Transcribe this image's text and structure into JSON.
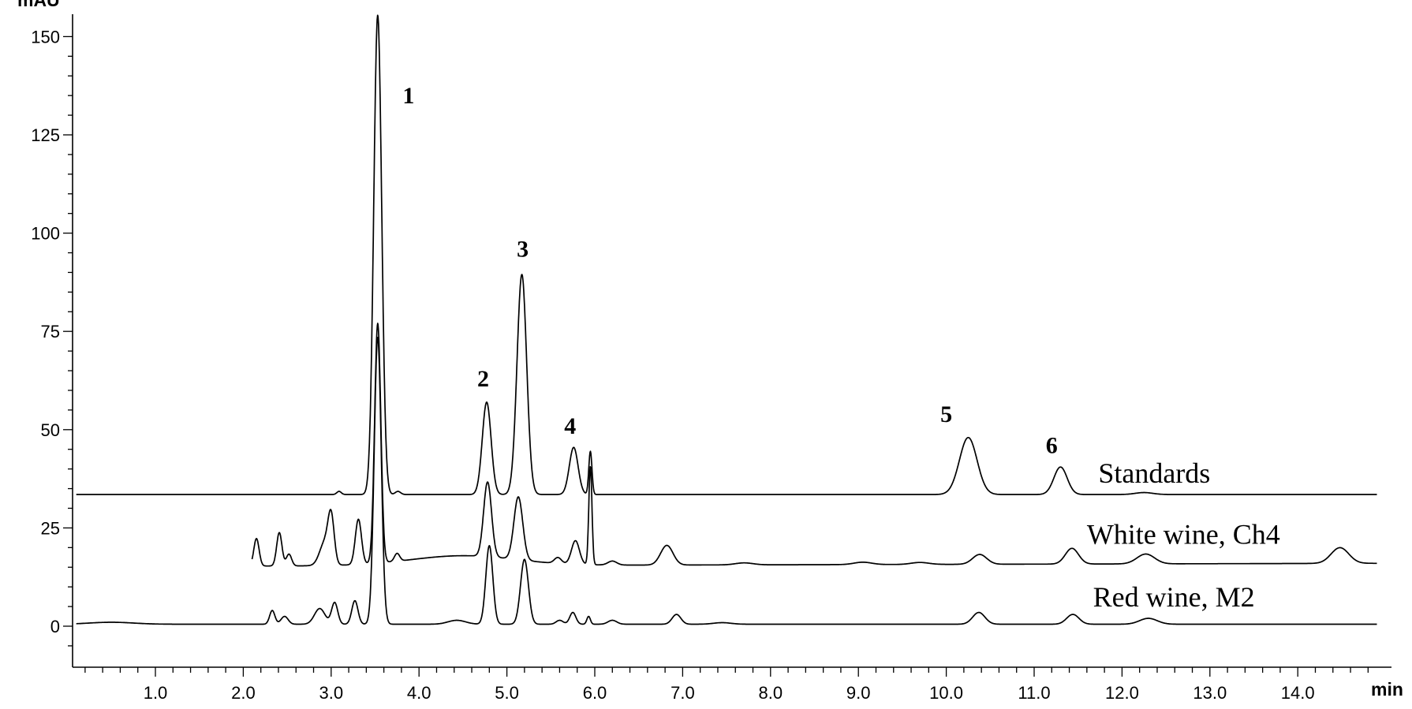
{
  "chart_data": {
    "type": "line",
    "title": "",
    "xlabel": "min",
    "ylabel": "mAU",
    "xlim": [
      0.1,
      14.9
    ],
    "ylim": [
      -10,
      156
    ],
    "x_ticks": [
      "1.0",
      "2.0",
      "3.0",
      "4.0",
      "5.0",
      "6.0",
      "7.0",
      "8.0",
      "9.0",
      "10.0",
      "11.0",
      "12.0",
      "13.0",
      "14.0"
    ],
    "y_ticks": [
      "0",
      "25",
      "50",
      "75",
      "100",
      "125",
      "150"
    ],
    "grid": false,
    "series": [
      {
        "name": "Standards",
        "baseline": 33.5,
        "peaks": [
          {
            "x": 3.09,
            "h": 0.8,
            "w": 0.025
          },
          {
            "x": 3.53,
            "h": 122.0,
            "w": 0.045
          },
          {
            "x": 3.76,
            "h": 0.8,
            "w": 0.03
          },
          {
            "x": 4.77,
            "h": 23.5,
            "w": 0.05
          },
          {
            "x": 5.17,
            "h": 56.0,
            "w": 0.055
          },
          {
            "x": 5.76,
            "h": 12.0,
            "w": 0.05
          },
          {
            "x": 5.95,
            "h": 11.0,
            "w": 0.018
          },
          {
            "x": 10.25,
            "h": 14.5,
            "w": 0.1
          },
          {
            "x": 11.3,
            "h": 7.0,
            "w": 0.075
          },
          {
            "x": 12.25,
            "h": 0.5,
            "w": 0.1
          }
        ]
      },
      {
        "name": "White wine, Ch4",
        "baseline": 15.3,
        "end_baseline": 16.0,
        "start": 2.1,
        "drift": [
          {
            "x": 4.5,
            "h": 2.5,
            "w": 0.6
          }
        ],
        "peaks": [
          {
            "x": 2.15,
            "h": 7.0,
            "w": 0.03
          },
          {
            "x": 2.41,
            "h": 8.5,
            "w": 0.03
          },
          {
            "x": 2.52,
            "h": 3.0,
            "w": 0.03
          },
          {
            "x": 2.93,
            "h": 6.0,
            "w": 0.06
          },
          {
            "x": 3.0,
            "h": 11.0,
            "w": 0.035
          },
          {
            "x": 3.31,
            "h": 11.5,
            "w": 0.035
          },
          {
            "x": 3.53,
            "h": 61.0,
            "w": 0.035
          },
          {
            "x": 3.75,
            "h": 2.0,
            "w": 0.03
          },
          {
            "x": 4.78,
            "h": 19.0,
            "w": 0.045
          },
          {
            "x": 5.13,
            "h": 16.0,
            "w": 0.05
          },
          {
            "x": 5.58,
            "h": 1.5,
            "w": 0.04
          },
          {
            "x": 5.78,
            "h": 6.0,
            "w": 0.045
          },
          {
            "x": 5.95,
            "h": 25.0,
            "w": 0.018
          },
          {
            "x": 6.2,
            "h": 1.0,
            "w": 0.05
          },
          {
            "x": 6.82,
            "h": 5.0,
            "w": 0.07
          },
          {
            "x": 7.7,
            "h": 0.5,
            "w": 0.1
          },
          {
            "x": 9.05,
            "h": 0.6,
            "w": 0.1
          },
          {
            "x": 9.7,
            "h": 0.5,
            "w": 0.1
          },
          {
            "x": 10.38,
            "h": 2.5,
            "w": 0.08
          },
          {
            "x": 11.43,
            "h": 4.0,
            "w": 0.075
          },
          {
            "x": 12.27,
            "h": 2.5,
            "w": 0.1
          },
          {
            "x": 14.48,
            "h": 4.0,
            "w": 0.1
          }
        ]
      },
      {
        "name": "Red wine, M2",
        "baseline": 0.5,
        "start": 0.1,
        "drift": [
          {
            "x": 0.5,
            "h": 0.5,
            "w": 0.25
          }
        ],
        "peaks": [
          {
            "x": 2.33,
            "h": 3.5,
            "w": 0.03
          },
          {
            "x": 2.47,
            "h": 2.0,
            "w": 0.04
          },
          {
            "x": 2.87,
            "h": 4.0,
            "w": 0.06
          },
          {
            "x": 3.04,
            "h": 5.5,
            "w": 0.035
          },
          {
            "x": 3.27,
            "h": 6.0,
            "w": 0.035
          },
          {
            "x": 3.53,
            "h": 73.0,
            "w": 0.04
          },
          {
            "x": 4.43,
            "h": 1.0,
            "w": 0.1
          },
          {
            "x": 4.8,
            "h": 20.0,
            "w": 0.04
          },
          {
            "x": 5.2,
            "h": 16.5,
            "w": 0.045
          },
          {
            "x": 5.6,
            "h": 1.0,
            "w": 0.04
          },
          {
            "x": 5.75,
            "h": 3.0,
            "w": 0.035
          },
          {
            "x": 5.93,
            "h": 2.0,
            "w": 0.02
          },
          {
            "x": 6.2,
            "h": 1.0,
            "w": 0.05
          },
          {
            "x": 6.93,
            "h": 2.5,
            "w": 0.05
          },
          {
            "x": 7.45,
            "h": 0.4,
            "w": 0.1
          },
          {
            "x": 10.37,
            "h": 3.0,
            "w": 0.07
          },
          {
            "x": 11.44,
            "h": 2.5,
            "w": 0.07
          },
          {
            "x": 12.3,
            "h": 1.5,
            "w": 0.1
          }
        ]
      }
    ],
    "peak_labels": [
      {
        "label": "1",
        "x": 3.88,
        "y": 133
      },
      {
        "label": "2",
        "x": 4.73,
        "y": 61
      },
      {
        "label": "3",
        "x": 5.18,
        "y": 94
      },
      {
        "label": "4",
        "x": 5.72,
        "y": 49
      },
      {
        "label": "5",
        "x": 10.0,
        "y": 52
      },
      {
        "label": "6",
        "x": 11.2,
        "y": 44
      }
    ],
    "series_label_positions": [
      {
        "x": 11.73,
        "y": 36.5
      },
      {
        "x": 11.6,
        "y": 21
      },
      {
        "x": 11.67,
        "y": 5
      }
    ]
  }
}
